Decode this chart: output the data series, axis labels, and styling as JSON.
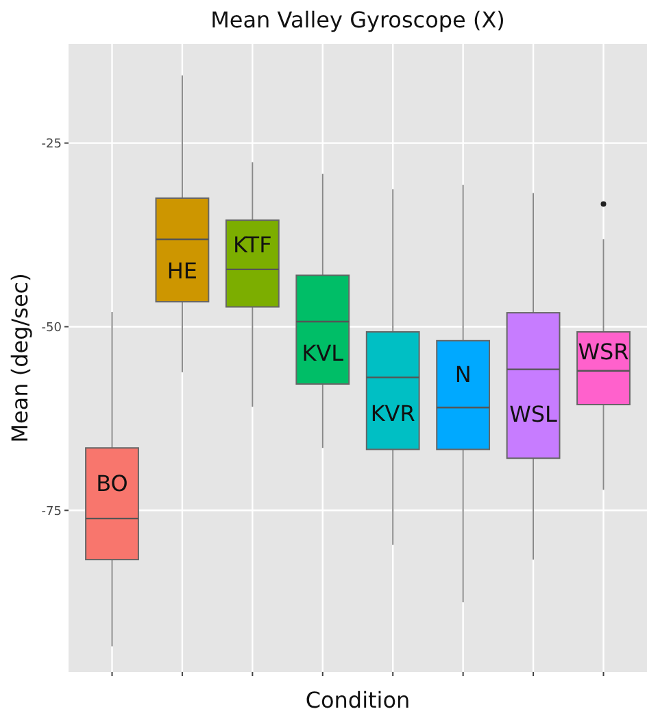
{
  "chart_data": {
    "type": "box",
    "title": "Mean Valley Gyroscope (X)",
    "xlabel": "Condition",
    "ylabel": "Mean (deg/sec)",
    "categories": [
      "BO",
      "HE",
      "KTF",
      "KVL",
      "KVR",
      "N",
      "WSL",
      "WSR"
    ],
    "colors": [
      "#f8766d",
      "#cd9600",
      "#7cae00",
      "#00be67",
      "#00bfc4",
      "#00a9ff",
      "#c77cff",
      "#ff61cc"
    ],
    "boxes": [
      {
        "low": -93.5,
        "q1": -81.7,
        "median": -76.1,
        "q3": -66.5,
        "high": -48.0
      },
      {
        "low": -56.2,
        "q1": -46.6,
        "median": -38.1,
        "q3": -32.5,
        "high": -15.8
      },
      {
        "low": -60.9,
        "q1": -47.3,
        "median": -42.2,
        "q3": -35.5,
        "high": -27.6
      },
      {
        "low": -66.5,
        "q1": -57.8,
        "median": -49.3,
        "q3": -43.0,
        "high": -29.2
      },
      {
        "low": -79.7,
        "q1": -66.7,
        "median": -56.9,
        "q3": -50.7,
        "high": -31.3
      },
      {
        "low": -87.5,
        "q1": -66.7,
        "median": -61.0,
        "q3": -51.9,
        "high": -30.7
      },
      {
        "low": -81.7,
        "q1": -67.9,
        "median": -55.8,
        "q3": -48.1,
        "high": -31.8
      },
      {
        "low": -72.2,
        "q1": -60.6,
        "median": -56.0,
        "q3": -50.7,
        "high": -38.1,
        "outliers": [
          -33.3
        ]
      }
    ],
    "ylim": [
      -97,
      -11.5
    ],
    "yticks": [
      -25,
      -50,
      -75
    ],
    "grid": true,
    "tick_labels": "y"
  }
}
